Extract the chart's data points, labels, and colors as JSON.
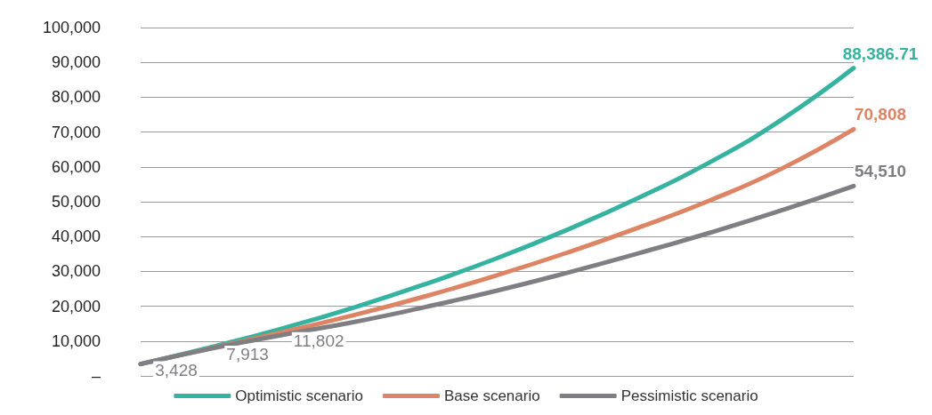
{
  "chart_data": {
    "type": "line",
    "categories": [
      null,
      null,
      null,
      null,
      null,
      null,
      null,
      null,
      null,
      null,
      null
    ],
    "series": [
      {
        "name": "Optimistic scenario",
        "color": "#35b3a0",
        "values": [
          3400,
          8300,
          13700,
          19700,
          26400,
          33800,
          42100,
          51300,
          61500,
          73700,
          88386.71
        ],
        "value_labels": [
          null,
          null,
          null,
          null,
          null,
          null,
          null,
          null,
          null,
          null,
          "88,386.71"
        ]
      },
      {
        "name": "Base scenario",
        "color": "#dc8464",
        "values": [
          3400,
          8000,
          12600,
          17500,
          22900,
          28900,
          35500,
          42700,
          50500,
          59600,
          70808
        ],
        "value_labels": [
          null,
          null,
          null,
          null,
          null,
          null,
          null,
          null,
          null,
          null,
          "70,808"
        ]
      },
      {
        "name": "Pessimistic scenario",
        "color": "#7f7f83",
        "values": [
          3428,
          7913,
          11802,
          15500,
          19800,
          24500,
          29700,
          35300,
          41200,
          47600,
          54510
        ],
        "value_labels": [
          "3,428",
          "7,913",
          "11,802",
          null,
          null,
          null,
          null,
          null,
          null,
          null,
          "54,510"
        ]
      }
    ],
    "ylim": [
      0,
      100000
    ],
    "yticks": [
      {
        "value": 0,
        "label": "–"
      },
      {
        "value": 10000,
        "label": "10,000"
      },
      {
        "value": 20000,
        "label": "20,000"
      },
      {
        "value": 30000,
        "label": "30,000"
      },
      {
        "value": 40000,
        "label": "40,000"
      },
      {
        "value": 50000,
        "label": "50,000"
      },
      {
        "value": 60000,
        "label": "60,000"
      },
      {
        "value": 70000,
        "label": "70,000"
      },
      {
        "value": 80000,
        "label": "80,000"
      },
      {
        "value": 90000,
        "label": "90,000"
      },
      {
        "value": 100000,
        "label": "100,000"
      }
    ],
    "grid": "y",
    "legend": "bottom",
    "marker": "none",
    "line_style": "solid"
  }
}
